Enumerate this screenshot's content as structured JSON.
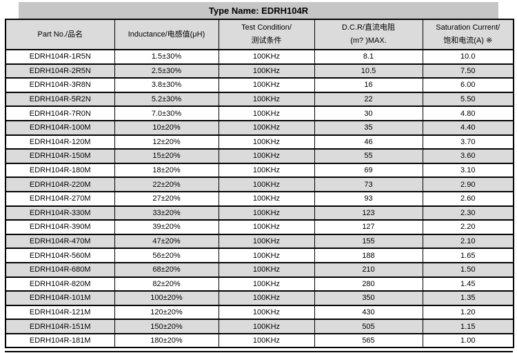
{
  "title_bar": {
    "text": "Type Name: EDRH104R"
  },
  "colors": {
    "title_bar_bg": "#C6C6C6",
    "header_bg": "#DBDBDB",
    "alt_row_bg": "#DBDBDB",
    "row_bg": "#FFFFFF",
    "border": "#000000",
    "text": "#000000"
  },
  "table": {
    "columns": [
      {
        "id": "part_no",
        "lines": [
          "Part No./品名"
        ]
      },
      {
        "id": "inductance",
        "lines": [
          "Inductance/电感值(μH)"
        ]
      },
      {
        "id": "test_condition",
        "lines": [
          "Test Condition/",
          "测试条件"
        ]
      },
      {
        "id": "dcr",
        "lines": [
          "D.C.R/直流电阻",
          "(m? )MAX."
        ]
      },
      {
        "id": "saturation_current",
        "lines": [
          "Saturation Current/",
          "饱和电流(A) ※"
        ]
      }
    ],
    "rows": [
      [
        "EDRH104R-1R5N",
        "1.5±30%",
        "100KHz",
        "8.1",
        "10.0"
      ],
      [
        "EDRH104R-2R5N",
        "2.5±30%",
        "100KHz",
        "10.5",
        "7.50"
      ],
      [
        "EDRH104R-3R8N",
        "3.8±30%",
        "100KHz",
        "16",
        "6.00"
      ],
      [
        "EDRH104R-5R2N",
        "5.2±30%",
        "100KHz",
        "22",
        "5.50"
      ],
      [
        "EDRH104R-7R0N",
        "7.0±30%",
        "100KHz",
        "30",
        "4.80"
      ],
      [
        "EDRH104R-100M",
        "10±20%",
        "100KHz",
        "35",
        "4.40"
      ],
      [
        "EDRH104R-120M",
        "12±20%",
        "100KHz",
        "46",
        "3.70"
      ],
      [
        "EDRH104R-150M",
        "15±20%",
        "100KHz",
        "55",
        "3.60"
      ],
      [
        "EDRH104R-180M",
        "18±20%",
        "100KHz",
        "69",
        "3.10"
      ],
      [
        "EDRH104R-220M",
        "22±20%",
        "100KHz",
        "73",
        "2.90"
      ],
      [
        "EDRH104R-270M",
        "27±20%",
        "100KHz",
        "93",
        "2.60"
      ],
      [
        "EDRH104R-330M",
        "33±20%",
        "100KHz",
        "123",
        "2.30"
      ],
      [
        "EDRH104R-390M",
        "39±20%",
        "100KHz",
        "127",
        "2.20"
      ],
      [
        "EDRH104R-470M",
        "47±20%",
        "100KHz",
        "155",
        "2.10"
      ],
      [
        "EDRH104R-560M",
        "56±20%",
        "100KHz",
        "188",
        "1.65"
      ],
      [
        "EDRH104R-680M",
        "68±20%",
        "100KHz",
        "210",
        "1.50"
      ],
      [
        "EDRH104R-820M",
        "82±20%",
        "100KHz",
        "280",
        "1.45"
      ],
      [
        "EDRH104R-101M",
        "100±20%",
        "100KHz",
        "350",
        "1.35"
      ],
      [
        "EDRH104R-121M",
        "120±20%",
        "100KHz",
        "430",
        "1.20"
      ],
      [
        "EDRH104R-151M",
        "150±20%",
        "100KHz",
        "505",
        "1.15"
      ],
      [
        "EDRH104R-181M",
        "180±20%",
        "100KHz",
        "565",
        "1.00"
      ]
    ]
  }
}
